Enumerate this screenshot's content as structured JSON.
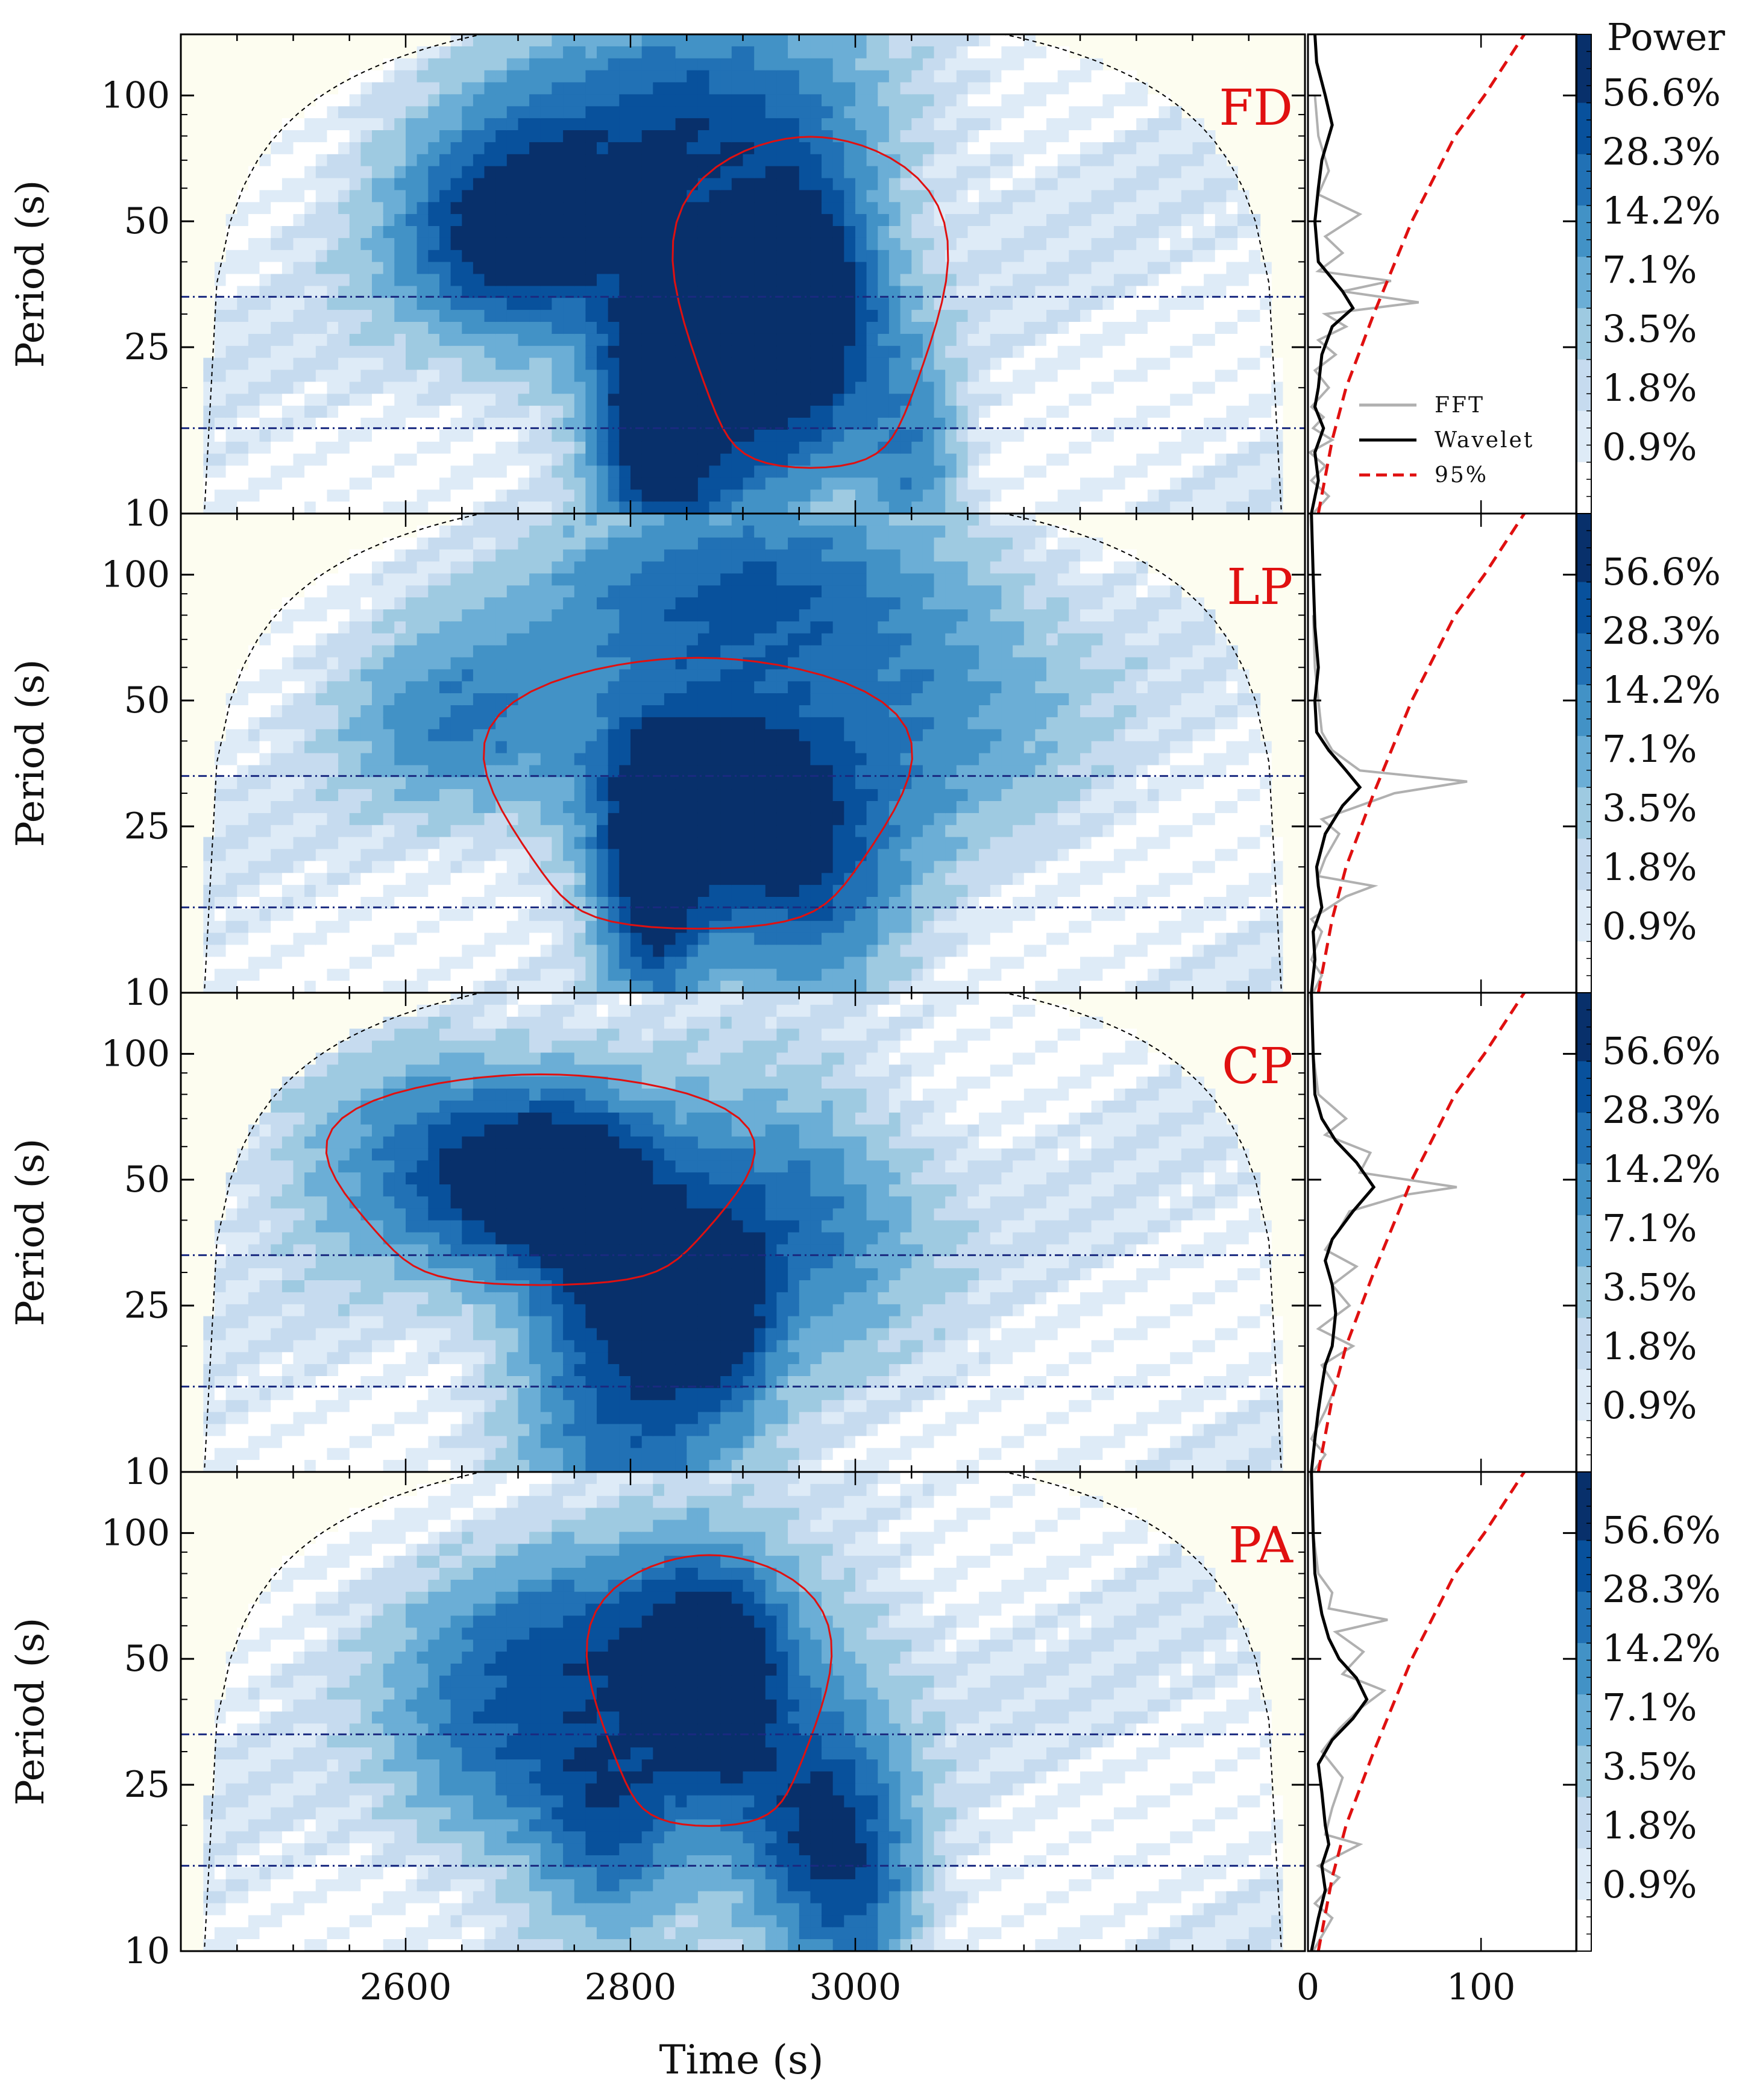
{
  "chart_data": {
    "type": "heatmap",
    "description_type": "wavelet power spectrum panels with global power side plots",
    "xlabel": "Time (s)",
    "ylabel": "Period (s)",
    "x_ticks": [
      2600,
      2800,
      3000
    ],
    "x_range": [
      2400,
      3400
    ],
    "y_scale": "log",
    "y_ticks": [
      10,
      25,
      50,
      100
    ],
    "y_range": [
      10,
      140
    ],
    "side_x_ticks": [
      0,
      100
    ],
    "side_x_range": [
      0,
      155
    ],
    "colorbar_title": "Power",
    "colorbar_labels": [
      "56.6%",
      "28.3%",
      "14.2%",
      "7.1%",
      "3.5%",
      "1.8%",
      "0.9%"
    ],
    "legend": [
      {
        "name": "FFT",
        "color": "#b0b0b0",
        "style": "solid"
      },
      {
        "name": "Wavelet",
        "color": "#000000",
        "style": "solid"
      },
      {
        "name": "95%",
        "color": "#e01010",
        "style": "dashed"
      }
    ],
    "colors": {
      "cmap": [
        "#ffffff",
        "#deebf7",
        "#c6dbef",
        "#9ecae1",
        "#6baed6",
        "#4292c6",
        "#2171b5",
        "#08519c",
        "#08306b"
      ],
      "coi_fill": "#fdfdf0",
      "contour": "#e01010",
      "band_line": "#1a2a80",
      "panel_label": "#e01010"
    },
    "panels": [
      {
        "label": "FD",
        "band_periods": [
          33,
          16
        ],
        "blobs": [
          {
            "t": 2960,
            "p": 32,
            "pow": 1.0,
            "st": 45,
            "sp": 0.22
          },
          {
            "t": 2820,
            "p": 17,
            "pow": 0.85,
            "st": 35,
            "sp": 0.2
          },
          {
            "t": 2880,
            "p": 22,
            "pow": 0.7,
            "st": 60,
            "sp": 0.3
          },
          {
            "t": 2740,
            "p": 45,
            "pow": 0.55,
            "st": 90,
            "sp": 0.2
          },
          {
            "t": 2850,
            "p": 90,
            "pow": 0.55,
            "st": 120,
            "sp": 0.18
          },
          {
            "t": 2680,
            "p": 48,
            "pow": 0.5,
            "st": 60,
            "sp": 0.16
          },
          {
            "t": 3050,
            "p": 13,
            "pow": 0.45,
            "st": 30,
            "sp": 0.2
          }
        ],
        "global_wavelet": [
          [
            10,
            2
          ],
          [
            12,
            6
          ],
          [
            14,
            4
          ],
          [
            16,
            9
          ],
          [
            18,
            4
          ],
          [
            20,
            6
          ],
          [
            24,
            8
          ],
          [
            28,
            14
          ],
          [
            31,
            26
          ],
          [
            34,
            20
          ],
          [
            40,
            6
          ],
          [
            50,
            4
          ],
          [
            60,
            6
          ],
          [
            70,
            8
          ],
          [
            85,
            14
          ],
          [
            100,
            10
          ],
          [
            120,
            5
          ],
          [
            140,
            4
          ]
        ],
        "fft": [
          [
            10,
            3
          ],
          [
            11,
            12
          ],
          [
            12,
            2
          ],
          [
            13,
            10
          ],
          [
            14,
            1
          ],
          [
            15,
            14
          ],
          [
            16,
            3
          ],
          [
            17,
            9
          ],
          [
            18,
            2
          ],
          [
            20,
            12
          ],
          [
            22,
            4
          ],
          [
            24,
            16
          ],
          [
            26,
            6
          ],
          [
            28,
            22
          ],
          [
            30,
            10
          ],
          [
            32,
            64
          ],
          [
            34,
            20
          ],
          [
            36,
            48
          ],
          [
            38,
            6
          ],
          [
            42,
            20
          ],
          [
            46,
            10
          ],
          [
            52,
            30
          ],
          [
            58,
            6
          ],
          [
            66,
            12
          ],
          [
            80,
            6
          ],
          [
            100,
            4
          ]
        ],
        "sig95": [
          [
            10,
            6
          ],
          [
            15,
            14
          ],
          [
            20,
            22
          ],
          [
            30,
            38
          ],
          [
            50,
            60
          ],
          [
            80,
            85
          ],
          [
            100,
            102
          ],
          [
            140,
            125
          ]
        ]
      },
      {
        "label": "LP",
        "band_periods": [
          33,
          16
        ],
        "blobs": [
          {
            "t": 2860,
            "p": 30,
            "pow": 1.0,
            "st": 70,
            "sp": 0.18
          },
          {
            "t": 2820,
            "p": 18,
            "pow": 0.8,
            "st": 30,
            "sp": 0.2
          },
          {
            "t": 2900,
            "p": 90,
            "pow": 0.6,
            "st": 130,
            "sp": 0.16
          },
          {
            "t": 2650,
            "p": 45,
            "pow": 0.45,
            "st": 70,
            "sp": 0.15
          },
          {
            "t": 2960,
            "p": 20,
            "pow": 0.55,
            "st": 60,
            "sp": 0.25
          },
          {
            "t": 3060,
            "p": 45,
            "pow": 0.35,
            "st": 90,
            "sp": 0.2
          }
        ],
        "global_wavelet": [
          [
            10,
            2
          ],
          [
            12,
            4
          ],
          [
            14,
            3
          ],
          [
            16,
            8
          ],
          [
            18,
            6
          ],
          [
            20,
            5
          ],
          [
            24,
            10
          ],
          [
            28,
            20
          ],
          [
            31,
            30
          ],
          [
            34,
            22
          ],
          [
            38,
            12
          ],
          [
            42,
            5
          ],
          [
            50,
            4
          ],
          [
            60,
            6
          ],
          [
            75,
            4
          ],
          [
            100,
            3
          ],
          [
            140,
            2
          ]
        ],
        "fft": [
          [
            10,
            3
          ],
          [
            11,
            8
          ],
          [
            12,
            2
          ],
          [
            14,
            8
          ],
          [
            15,
            2
          ],
          [
            17,
            22
          ],
          [
            18,
            38
          ],
          [
            19,
            6
          ],
          [
            21,
            10
          ],
          [
            24,
            18
          ],
          [
            26,
            8
          ],
          [
            30,
            50
          ],
          [
            32,
            92
          ],
          [
            34,
            30
          ],
          [
            38,
            14
          ],
          [
            42,
            8
          ],
          [
            50,
            6
          ],
          [
            60,
            4
          ],
          [
            80,
            3
          ]
        ],
        "sig95": [
          [
            10,
            6
          ],
          [
            15,
            14
          ],
          [
            20,
            22
          ],
          [
            30,
            38
          ],
          [
            50,
            60
          ],
          [
            80,
            85
          ],
          [
            100,
            102
          ],
          [
            140,
            125
          ]
        ]
      },
      {
        "label": "CP",
        "band_periods": [
          33,
          16
        ],
        "blobs": [
          {
            "t": 2720,
            "p": 50,
            "pow": 1.0,
            "st": 70,
            "sp": 0.14
          },
          {
            "t": 2870,
            "p": 24,
            "pow": 0.9,
            "st": 35,
            "sp": 0.14
          },
          {
            "t": 2930,
            "p": 40,
            "pow": 0.6,
            "st": 80,
            "sp": 0.2
          },
          {
            "t": 2780,
            "p": 30,
            "pow": 0.55,
            "st": 50,
            "sp": 0.2
          },
          {
            "t": 2800,
            "p": 14,
            "pow": 0.5,
            "st": 70,
            "sp": 0.25
          },
          {
            "t": 2600,
            "p": 60,
            "pow": 0.35,
            "st": 80,
            "sp": 0.2
          }
        ],
        "global_wavelet": [
          [
            10,
            2
          ],
          [
            12,
            4
          ],
          [
            14,
            6
          ],
          [
            16,
            8
          ],
          [
            18,
            10
          ],
          [
            20,
            14
          ],
          [
            24,
            16
          ],
          [
            28,
            14
          ],
          [
            32,
            10
          ],
          [
            36,
            14
          ],
          [
            42,
            26
          ],
          [
            48,
            38
          ],
          [
            55,
            28
          ],
          [
            62,
            16
          ],
          [
            70,
            8
          ],
          [
            80,
            4
          ],
          [
            100,
            3
          ],
          [
            140,
            2
          ]
        ],
        "fft": [
          [
            10,
            3
          ],
          [
            11,
            10
          ],
          [
            12,
            2
          ],
          [
            14,
            10
          ],
          [
            16,
            16
          ],
          [
            18,
            8
          ],
          [
            20,
            26
          ],
          [
            22,
            6
          ],
          [
            25,
            24
          ],
          [
            28,
            14
          ],
          [
            31,
            28
          ],
          [
            34,
            10
          ],
          [
            38,
            18
          ],
          [
            42,
            24
          ],
          [
            46,
            56
          ],
          [
            48,
            86
          ],
          [
            52,
            30
          ],
          [
            58,
            36
          ],
          [
            64,
            10
          ],
          [
            70,
            22
          ],
          [
            80,
            6
          ],
          [
            100,
            3
          ]
        ],
        "sig95": [
          [
            10,
            6
          ],
          [
            15,
            14
          ],
          [
            20,
            22
          ],
          [
            30,
            38
          ],
          [
            50,
            60
          ],
          [
            80,
            85
          ],
          [
            100,
            102
          ],
          [
            140,
            125
          ]
        ]
      },
      {
        "label": "PA",
        "band_periods": [
          33,
          16
        ],
        "blobs": [
          {
            "t": 2870,
            "p": 42,
            "pow": 1.0,
            "st": 40,
            "sp": 0.18
          },
          {
            "t": 2780,
            "p": 22,
            "pow": 0.7,
            "st": 45,
            "sp": 0.18
          },
          {
            "t": 2960,
            "p": 22,
            "pow": 0.65,
            "st": 50,
            "sp": 0.2
          },
          {
            "t": 2800,
            "p": 55,
            "pow": 0.6,
            "st": 120,
            "sp": 0.16
          },
          {
            "t": 2680,
            "p": 30,
            "pow": 0.45,
            "st": 60,
            "sp": 0.18
          },
          {
            "t": 3000,
            "p": 13,
            "pow": 0.45,
            "st": 40,
            "sp": 0.2
          }
        ],
        "global_wavelet": [
          [
            10,
            2
          ],
          [
            12,
            6
          ],
          [
            14,
            10
          ],
          [
            16,
            8
          ],
          [
            18,
            12
          ],
          [
            20,
            10
          ],
          [
            24,
            8
          ],
          [
            28,
            6
          ],
          [
            32,
            14
          ],
          [
            36,
            26
          ],
          [
            40,
            34
          ],
          [
            45,
            28
          ],
          [
            50,
            18
          ],
          [
            56,
            12
          ],
          [
            64,
            8
          ],
          [
            80,
            4
          ],
          [
            100,
            3
          ],
          [
            140,
            2
          ]
        ],
        "fft": [
          [
            10,
            3
          ],
          [
            12,
            14
          ],
          [
            13,
            4
          ],
          [
            15,
            18
          ],
          [
            16,
            6
          ],
          [
            18,
            30
          ],
          [
            19,
            10
          ],
          [
            22,
            14
          ],
          [
            26,
            20
          ],
          [
            30,
            8
          ],
          [
            34,
            18
          ],
          [
            38,
            30
          ],
          [
            42,
            44
          ],
          [
            46,
            20
          ],
          [
            52,
            32
          ],
          [
            58,
            16
          ],
          [
            62,
            46
          ],
          [
            66,
            12
          ],
          [
            72,
            14
          ],
          [
            80,
            6
          ],
          [
            100,
            3
          ]
        ],
        "sig95": [
          [
            10,
            6
          ],
          [
            15,
            14
          ],
          [
            20,
            22
          ],
          [
            30,
            38
          ],
          [
            50,
            60
          ],
          [
            80,
            85
          ],
          [
            100,
            102
          ],
          [
            140,
            125
          ]
        ]
      }
    ]
  }
}
